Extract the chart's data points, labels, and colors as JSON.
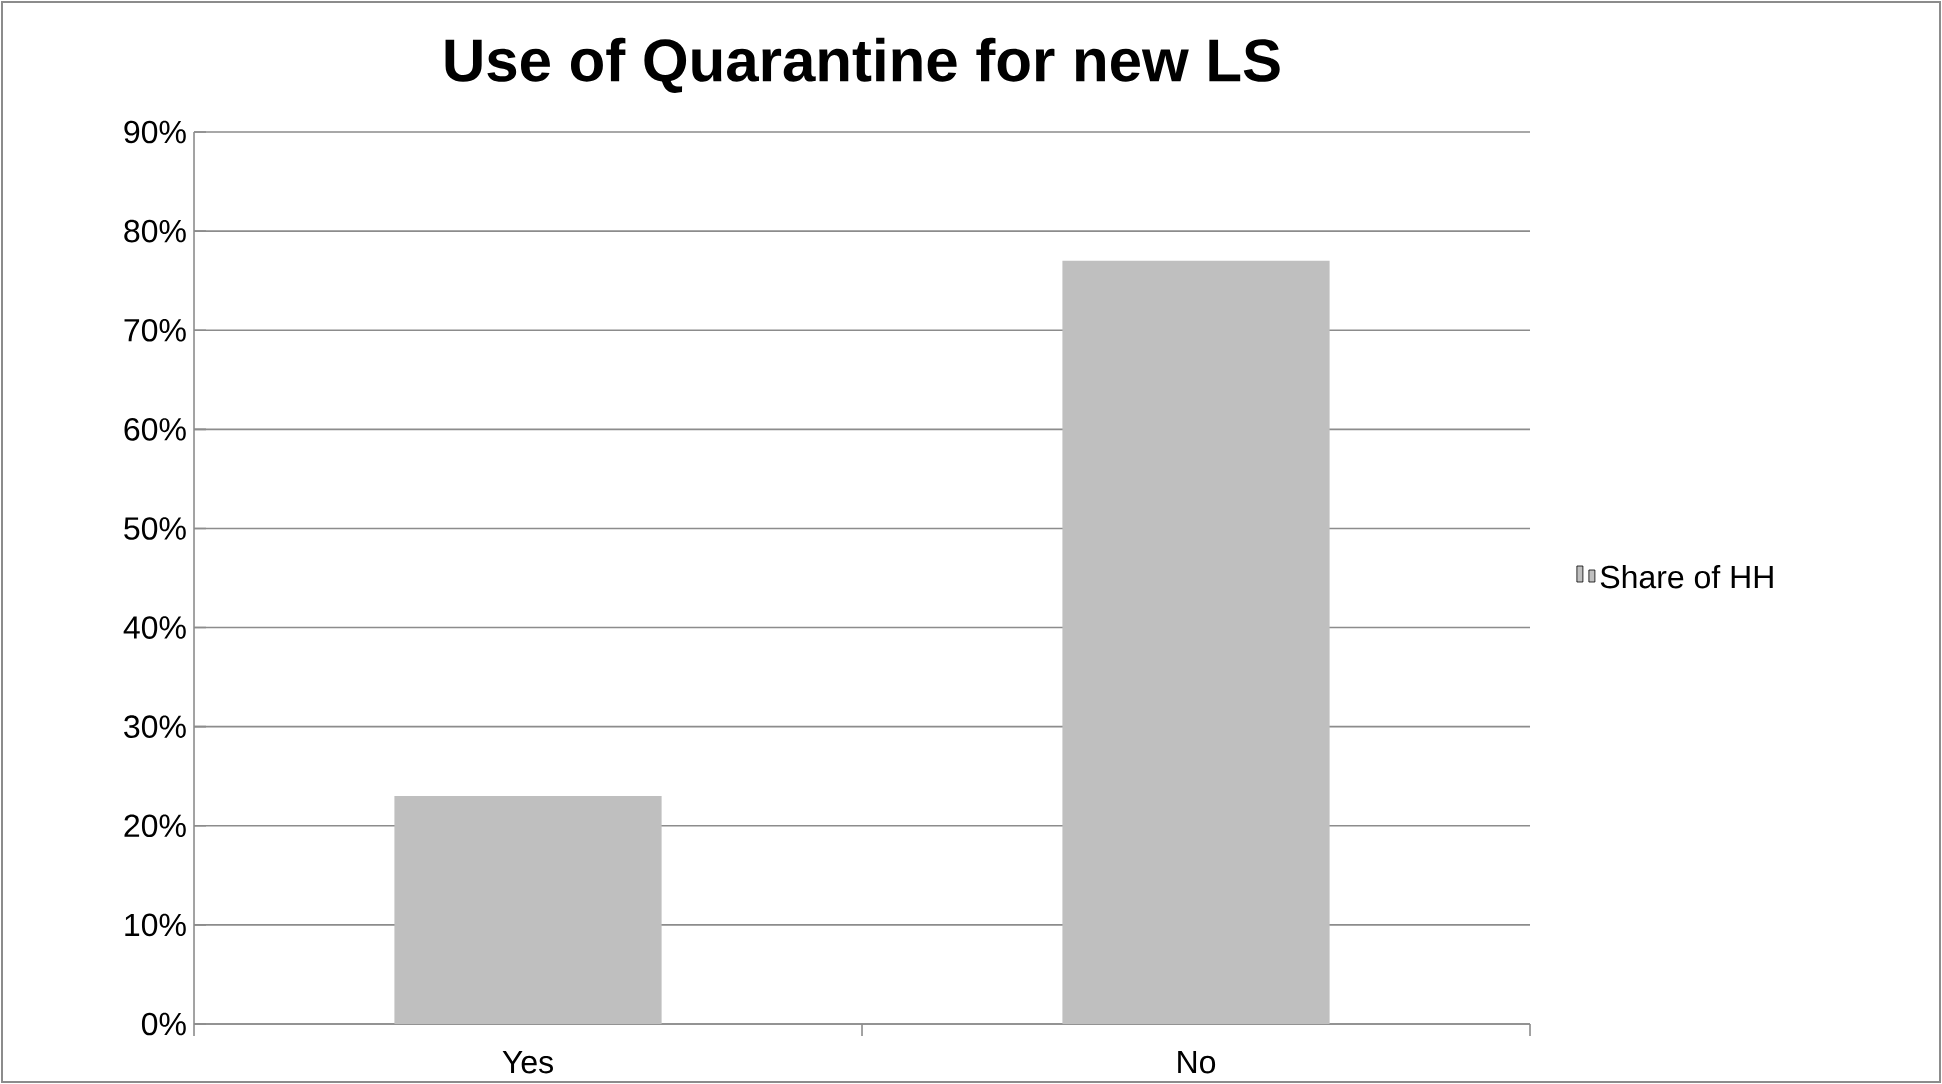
{
  "chart_data": {
    "type": "bar",
    "title": "Use of Quarantine for new LS",
    "categories": [
      "Yes",
      "No"
    ],
    "series": [
      {
        "name": "Share of HH",
        "color": "#bfbfbf",
        "values": [
          23,
          77
        ]
      }
    ],
    "ylim": [
      0,
      90
    ],
    "yticks": [
      {
        "value": 0,
        "label": "0%"
      },
      {
        "value": 10,
        "label": "10%"
      },
      {
        "value": 20,
        "label": "20%"
      },
      {
        "value": 30,
        "label": "30%"
      },
      {
        "value": 40,
        "label": "40%"
      },
      {
        "value": 50,
        "label": "50%"
      },
      {
        "value": 60,
        "label": "60%"
      },
      {
        "value": 70,
        "label": "70%"
      },
      {
        "value": 80,
        "label": "80%"
      },
      {
        "value": 90,
        "label": "90%"
      }
    ],
    "grid": "y",
    "legend": "right"
  }
}
